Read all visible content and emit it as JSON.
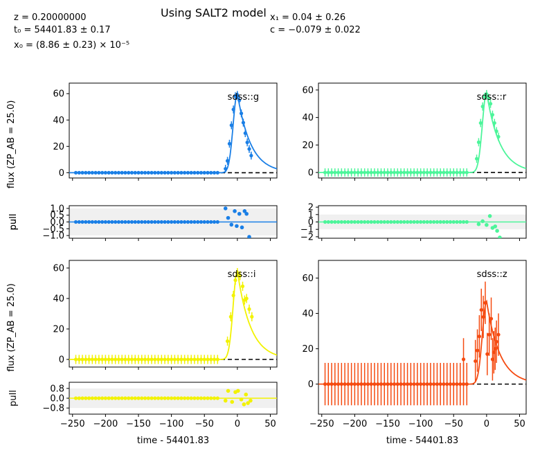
{
  "header": {
    "title": "Using SALT2 model",
    "params_left": [
      "z = 0.20000000",
      "t₀ = 54401.83 ± 0.17",
      "x₀ = (8.86 ± 0.23) × 10⁻⁵"
    ],
    "params_right": [
      "x₁ = 0.04 ± 0.26",
      "c = −0.079 ± 0.022"
    ]
  },
  "chart_data": [
    {
      "type": "scatter",
      "band": "sdss::g",
      "color": "#1a7fe6",
      "ylabel": "flux (ZP_AB = 25.0)",
      "xlim": [
        -255,
        60
      ],
      "ylim": [
        -4,
        68
      ],
      "yticks": [
        0,
        20,
        40,
        60
      ],
      "xticks": [
        -250,
        -200,
        -150,
        -100,
        -50,
        0,
        50
      ],
      "points_x_range": [
        -245,
        -30
      ],
      "points_x_step": 5,
      "baseline_y": 0,
      "points": [
        [
          -18,
          3
        ],
        [
          -15,
          9
        ],
        [
          -12,
          22
        ],
        [
          -9,
          36
        ],
        [
          -6,
          48
        ],
        [
          -3,
          58
        ],
        [
          0,
          59
        ],
        [
          3,
          55
        ],
        [
          6,
          45
        ],
        [
          9,
          38
        ],
        [
          12,
          30
        ],
        [
          15,
          23
        ],
        [
          18,
          18
        ],
        [
          21,
          13
        ]
      ],
      "pull": {
        "ylabel": "pull",
        "ylim": [
          -1.2,
          1.2
        ],
        "yticks": [
          1.0,
          0.5,
          0.0,
          -0.5,
          -1.0
        ],
        "band_range": [
          -1,
          1
        ],
        "points": [
          [
            -18,
            1.0
          ],
          [
            -14,
            0.3
          ],
          [
            -9,
            -0.2
          ],
          [
            -4,
            0.8
          ],
          [
            -1,
            -0.3
          ],
          [
            3,
            0.6
          ],
          [
            7,
            -0.4
          ],
          [
            11,
            0.8
          ],
          [
            14,
            0.6
          ],
          [
            18,
            -1.1
          ]
        ]
      }
    },
    {
      "type": "scatter",
      "band": "sdss::r",
      "color": "#4cf59a",
      "ylabel": "",
      "xlim": [
        -255,
        60
      ],
      "ylim": [
        -4,
        65
      ],
      "yticks": [
        0,
        20,
        40,
        60
      ],
      "xticks": [
        -250,
        -200,
        -150,
        -100,
        -50,
        0,
        50
      ],
      "points_x_range": [
        -245,
        -30
      ],
      "points_x_step": 5,
      "baseline_y": 0,
      "points": [
        [
          -15,
          10
        ],
        [
          -12,
          22
        ],
        [
          -9,
          36
        ],
        [
          -6,
          48
        ],
        [
          -3,
          55
        ],
        [
          0,
          57
        ],
        [
          3,
          54
        ],
        [
          6,
          50
        ],
        [
          9,
          42
        ],
        [
          12,
          36
        ],
        [
          15,
          30
        ],
        [
          18,
          26
        ]
      ],
      "pull": {
        "ylabel": "pull",
        "ylim": [
          -2.2,
          2.2
        ],
        "yticks": [
          2,
          1,
          0,
          -1,
          -2
        ],
        "band_range": [
          -1,
          1
        ],
        "points": [
          [
            -12,
            -0.3
          ],
          [
            -6,
            0.1
          ],
          [
            0,
            -0.4
          ],
          [
            5,
            0.8
          ],
          [
            9,
            -0.8
          ],
          [
            13,
            -0.6
          ],
          [
            16,
            -1.2
          ],
          [
            20,
            -2.1
          ]
        ]
      }
    },
    {
      "type": "scatter",
      "band": "sdss::i",
      "color": "#f2f200",
      "ylabel": "flux (ZP_AB = 25.0)",
      "xlim": [
        -255,
        60
      ],
      "ylim": [
        -5,
        65
      ],
      "yticks": [
        0,
        20,
        40,
        60
      ],
      "xticks": [
        -250,
        -200,
        -150,
        -100,
        -50,
        0,
        50
      ],
      "points_x_range": [
        -245,
        -30
      ],
      "points_x_step": 5,
      "baseline_y": 0,
      "points": [
        [
          -15,
          12
        ],
        [
          -10,
          28
        ],
        [
          -6,
          42
        ],
        [
          -3,
          52
        ],
        [
          0,
          57
        ],
        [
          4,
          55
        ],
        [
          8,
          48
        ],
        [
          11,
          39
        ],
        [
          14,
          40
        ],
        [
          18,
          33
        ],
        [
          22,
          28
        ]
      ],
      "pull": {
        "ylabel": "pull",
        "ylim": [
          -1.3,
          1.3
        ],
        "yticks": [
          0.8,
          0.0,
          -0.8
        ],
        "band_range": [
          -0.8,
          0.8
        ],
        "points": [
          [
            -18,
            -0.2
          ],
          [
            -14,
            0.6
          ],
          [
            -8,
            -0.3
          ],
          [
            -3,
            0.5
          ],
          [
            1,
            0.6
          ],
          [
            6,
            -0.1
          ],
          [
            10,
            -0.5
          ],
          [
            13,
            0.3
          ],
          [
            16,
            -0.4
          ],
          [
            20,
            -0.2
          ]
        ]
      }
    },
    {
      "type": "scatter",
      "band": "sdss::z",
      "color": "#f54a10",
      "ylabel": "",
      "xlim": [
        -255,
        60
      ],
      "ylim": [
        -17,
        70
      ],
      "yticks": [
        0,
        20,
        40,
        60
      ],
      "xticks": [
        -250,
        -200,
        -150,
        -100,
        -50,
        0,
        50
      ],
      "xlabel": "time - 54401.83",
      "points_x_range": [
        -245,
        -30
      ],
      "points_x_step": 5,
      "baseline_y": 0,
      "points": [
        [
          -35,
          14
        ],
        [
          -17,
          13
        ],
        [
          -14,
          19
        ],
        [
          -11,
          27
        ],
        [
          -8,
          42
        ],
        [
          -5,
          38
        ],
        [
          -2,
          46
        ],
        [
          1,
          17
        ],
        [
          4,
          28
        ],
        [
          7,
          37
        ],
        [
          9,
          14
        ],
        [
          11,
          18
        ],
        [
          13,
          20
        ],
        [
          15,
          24
        ],
        [
          18,
          28
        ]
      ],
      "errbar": 12
    }
  ],
  "shared_xlabel": "time - 54401.83"
}
